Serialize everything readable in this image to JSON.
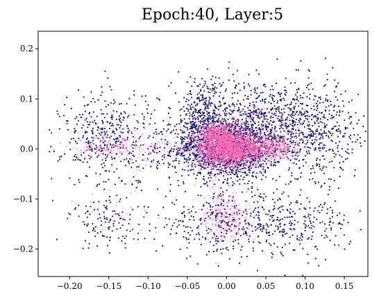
{
  "chart_data": {
    "type": "scatter",
    "title": "Epoch:40, Layer:5",
    "xlabel": "",
    "ylabel": "",
    "xlim": [
      -0.24,
      0.18
    ],
    "ylim": [
      -0.255,
      0.235
    ],
    "xticks": [
      -0.2,
      -0.15,
      -0.1,
      -0.05,
      0.0,
      0.05,
      0.1,
      0.15
    ],
    "xtick_labels": [
      "−0.20",
      "−0.15",
      "−0.10",
      "−0.05",
      "0.00",
      "0.05",
      "0.10",
      "0.15"
    ],
    "yticks": [
      -0.2,
      -0.1,
      0.0,
      0.1,
      0.2
    ],
    "ytick_labels": [
      "−0.2",
      "−0.1",
      "0.0",
      "0.1",
      "0.2"
    ],
    "grid": false,
    "series": [
      {
        "color": "#191970",
        "clusters": [
          {
            "center": [
              0.0,
              0.0
            ],
            "spread": [
              0.035,
              0.03
            ],
            "count": 1500
          },
          {
            "center": [
              0.06,
              0.05
            ],
            "spread": [
              0.05,
              0.045
            ],
            "count": 900
          },
          {
            "center": [
              -0.03,
              0.07
            ],
            "spread": [
              0.02,
              0.035
            ],
            "count": 350
          },
          {
            "center": [
              0.0,
              -0.15
            ],
            "spread": [
              0.045,
              0.03
            ],
            "count": 350
          },
          {
            "center": [
              0.09,
              -0.15
            ],
            "spread": [
              0.035,
              0.03
            ],
            "count": 220
          },
          {
            "center": [
              -0.15,
              0.02
            ],
            "spread": [
              0.03,
              0.05
            ],
            "count": 420
          },
          {
            "center": [
              -0.15,
              -0.15
            ],
            "spread": [
              0.025,
              0.025
            ],
            "count": 110
          },
          {
            "center": [
              0.12,
              0.02
            ],
            "spread": [
              0.025,
              0.05
            ],
            "count": 200
          }
        ]
      },
      {
        "color": "#FF69B4",
        "clusters": [
          {
            "center": [
              0.0,
              0.0
            ],
            "spread": [
              0.02,
              0.018
            ],
            "count": 1800
          },
          {
            "center": [
              -0.01,
              0.03
            ],
            "spread": [
              0.012,
              0.012
            ],
            "count": 500
          },
          {
            "center": [
              0.05,
              0.0
            ],
            "spread": [
              0.02,
              0.012
            ],
            "count": 500
          },
          {
            "center": [
              0.0,
              -0.13
            ],
            "spread": [
              0.015,
              0.03
            ],
            "count": 250
          },
          {
            "center": [
              -0.15,
              0.005
            ],
            "spread": [
              0.025,
              0.012
            ],
            "count": 150
          },
          {
            "center": [
              -0.09,
              0.0
            ],
            "spread": [
              0.02,
              0.02
            ],
            "count": 60
          },
          {
            "center": [
              0.05,
              0.05
            ],
            "spread": [
              0.04,
              0.03
            ],
            "count": 120
          },
          {
            "center": [
              -0.13,
              -0.12
            ],
            "spread": [
              0.03,
              0.03
            ],
            "count": 30
          }
        ]
      }
    ]
  }
}
